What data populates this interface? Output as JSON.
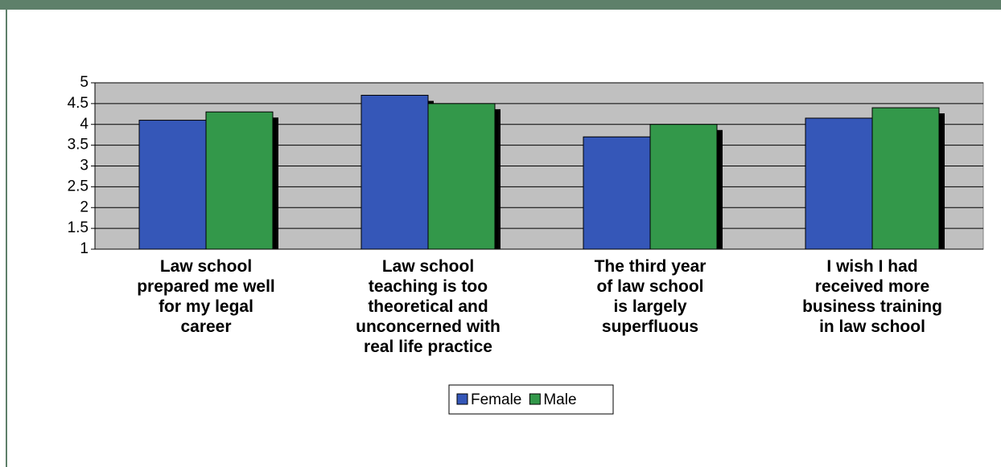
{
  "chart_data": {
    "type": "bar",
    "categories": [
      "Law school\nprepared me well\nfor my legal\ncareer",
      "Law school\nteaching is too\ntheoretical and\nunconcerned with\nreal life practice",
      "The third year\nof law school\nis largely\nsuperfluous",
      "I wish I had\nreceived more\nbusiness training\nin law school"
    ],
    "series": [
      {
        "name": "Female",
        "color": "#3557b8",
        "values": [
          4.1,
          4.7,
          3.7,
          4.15
        ]
      },
      {
        "name": "Male",
        "color": "#33984a",
        "values": [
          4.3,
          4.5,
          4.0,
          4.4
        ]
      }
    ],
    "ylim": [
      1,
      5
    ],
    "yticks": [
      1,
      1.5,
      2,
      2.5,
      3,
      3.5,
      4,
      4.5,
      5
    ],
    "grid": true,
    "legend": "bottom"
  }
}
